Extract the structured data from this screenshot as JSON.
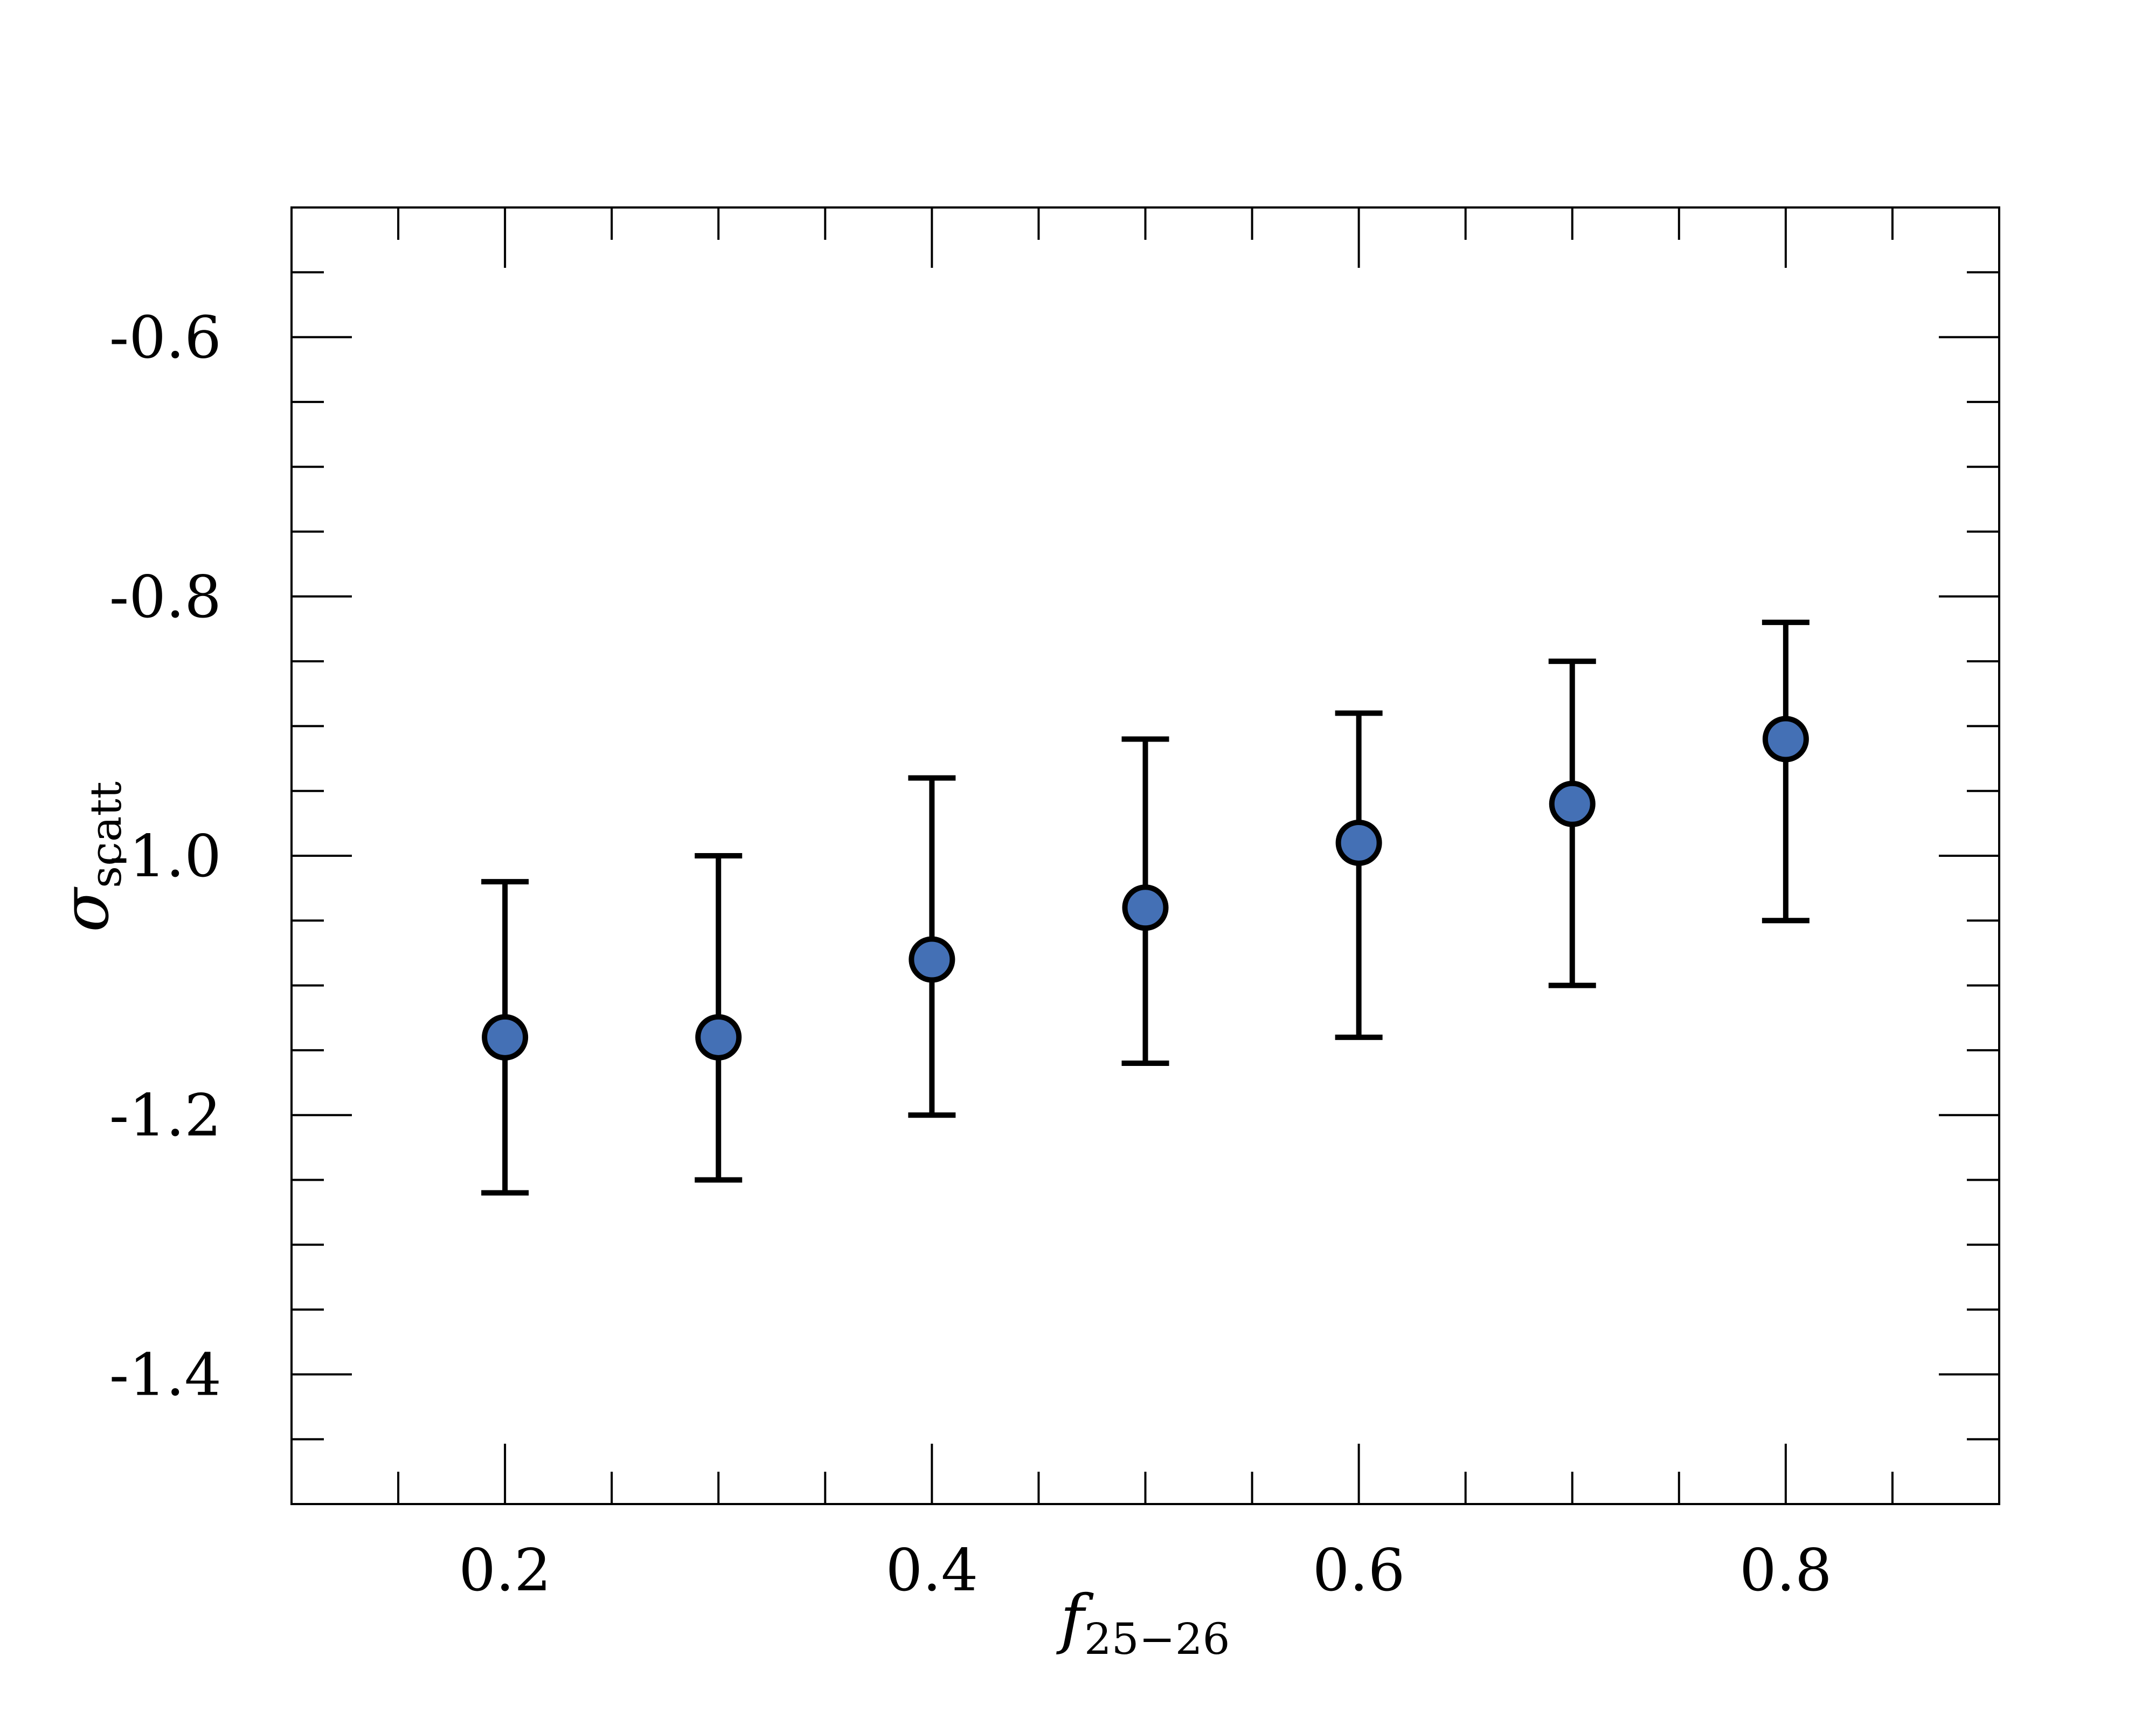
{
  "chart_data": {
    "type": "scatter",
    "title": "",
    "xlabel": {
      "main": "f",
      "sub": "25−26"
    },
    "ylabel": {
      "main": "σ",
      "sub": "scatt"
    },
    "xlim": [
      0.1,
      0.9
    ],
    "ylim": [
      -1.5,
      -0.5
    ],
    "x_ticks": [
      0.2,
      0.4,
      0.6,
      0.8
    ],
    "x_tick_labels": [
      "0.2",
      "0.4",
      "0.6",
      "0.8"
    ],
    "x_minor_step": 0.05,
    "y_ticks": [
      -1.4,
      -1.2,
      -1.0,
      -0.8,
      -0.6
    ],
    "y_tick_labels": [
      "-1.4",
      "-1.2",
      "-1.0",
      "-0.8",
      "-0.6"
    ],
    "y_minor_step": 0.05,
    "grid": false,
    "marker_color": "#4470b5",
    "marker_edge_color": "#000000",
    "errorbar_color": "#000000",
    "points": [
      {
        "x": 0.2,
        "y": -1.14,
        "y_low": -1.26,
        "y_high": -1.02
      },
      {
        "x": 0.3,
        "y": -1.14,
        "y_low": -1.25,
        "y_high": -1.0
      },
      {
        "x": 0.4,
        "y": -1.08,
        "y_low": -1.2,
        "y_high": -0.94
      },
      {
        "x": 0.5,
        "y": -1.04,
        "y_low": -1.16,
        "y_high": -0.91
      },
      {
        "x": 0.6,
        "y": -0.99,
        "y_low": -1.14,
        "y_high": -0.89
      },
      {
        "x": 0.7,
        "y": -0.96,
        "y_low": -1.1,
        "y_high": -0.85
      },
      {
        "x": 0.8,
        "y": -0.91,
        "y_low": -1.05,
        "y_high": -0.82
      }
    ]
  }
}
